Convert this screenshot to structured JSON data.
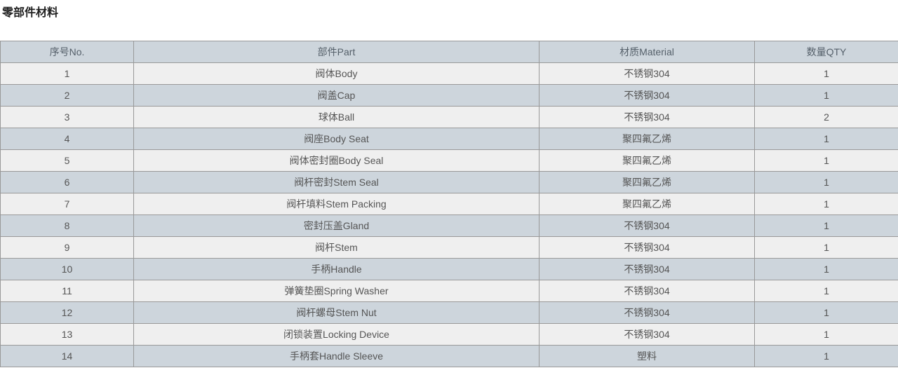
{
  "page": {
    "title": "零部件材料"
  },
  "table": {
    "columns": [
      {
        "label": "序号No."
      },
      {
        "label": "部件Part"
      },
      {
        "label": "材质Material"
      },
      {
        "label": "数量QTY"
      }
    ],
    "rows": [
      {
        "no": "1",
        "part": "阀体Body",
        "material": "不锈钢304",
        "qty": "1"
      },
      {
        "no": "2",
        "part": "阀盖Cap",
        "material": "不锈钢304",
        "qty": "1"
      },
      {
        "no": "3",
        "part": "球体Ball",
        "material": "不锈钢304",
        "qty": "2"
      },
      {
        "no": "4",
        "part": "阀座Body Seat",
        "material": "聚四氟乙烯",
        "qty": "1"
      },
      {
        "no": "5",
        "part": "阀体密封圈Body Seal",
        "material": "聚四氟乙烯",
        "qty": "1"
      },
      {
        "no": "6",
        "part": "阀杆密封Stem Seal",
        "material": "聚四氟乙烯",
        "qty": "1"
      },
      {
        "no": "7",
        "part": "阀杆填料Stem Packing",
        "material": "聚四氟乙烯",
        "qty": "1"
      },
      {
        "no": "8",
        "part": "密封压盖Gland",
        "material": "不锈钢304",
        "qty": "1"
      },
      {
        "no": "9",
        "part": "阀杆Stem",
        "material": "不锈钢304",
        "qty": "1"
      },
      {
        "no": "10",
        "part": "手柄Handle",
        "material": "不锈钢304",
        "qty": "1"
      },
      {
        "no": "11",
        "part": "弹簧垫圈Spring Washer",
        "material": "不锈钢304",
        "qty": "1"
      },
      {
        "no": "12",
        "part": "阀杆螺母Stem Nut",
        "material": "不锈钢304",
        "qty": "1"
      },
      {
        "no": "13",
        "part": "闭锁装置Locking Device",
        "material": "不锈钢304",
        "qty": "1"
      },
      {
        "no": "14",
        "part": "手柄套Handle Sleeve",
        "material": "塑料",
        "qty": "1"
      }
    ],
    "colors": {
      "header_bg": "#cdd5dc",
      "row_odd_bg": "#efefef",
      "row_even_bg": "#cdd5dc",
      "border": "#999999",
      "cell_text": "#555555",
      "title_text": "#1f1f1f"
    }
  }
}
